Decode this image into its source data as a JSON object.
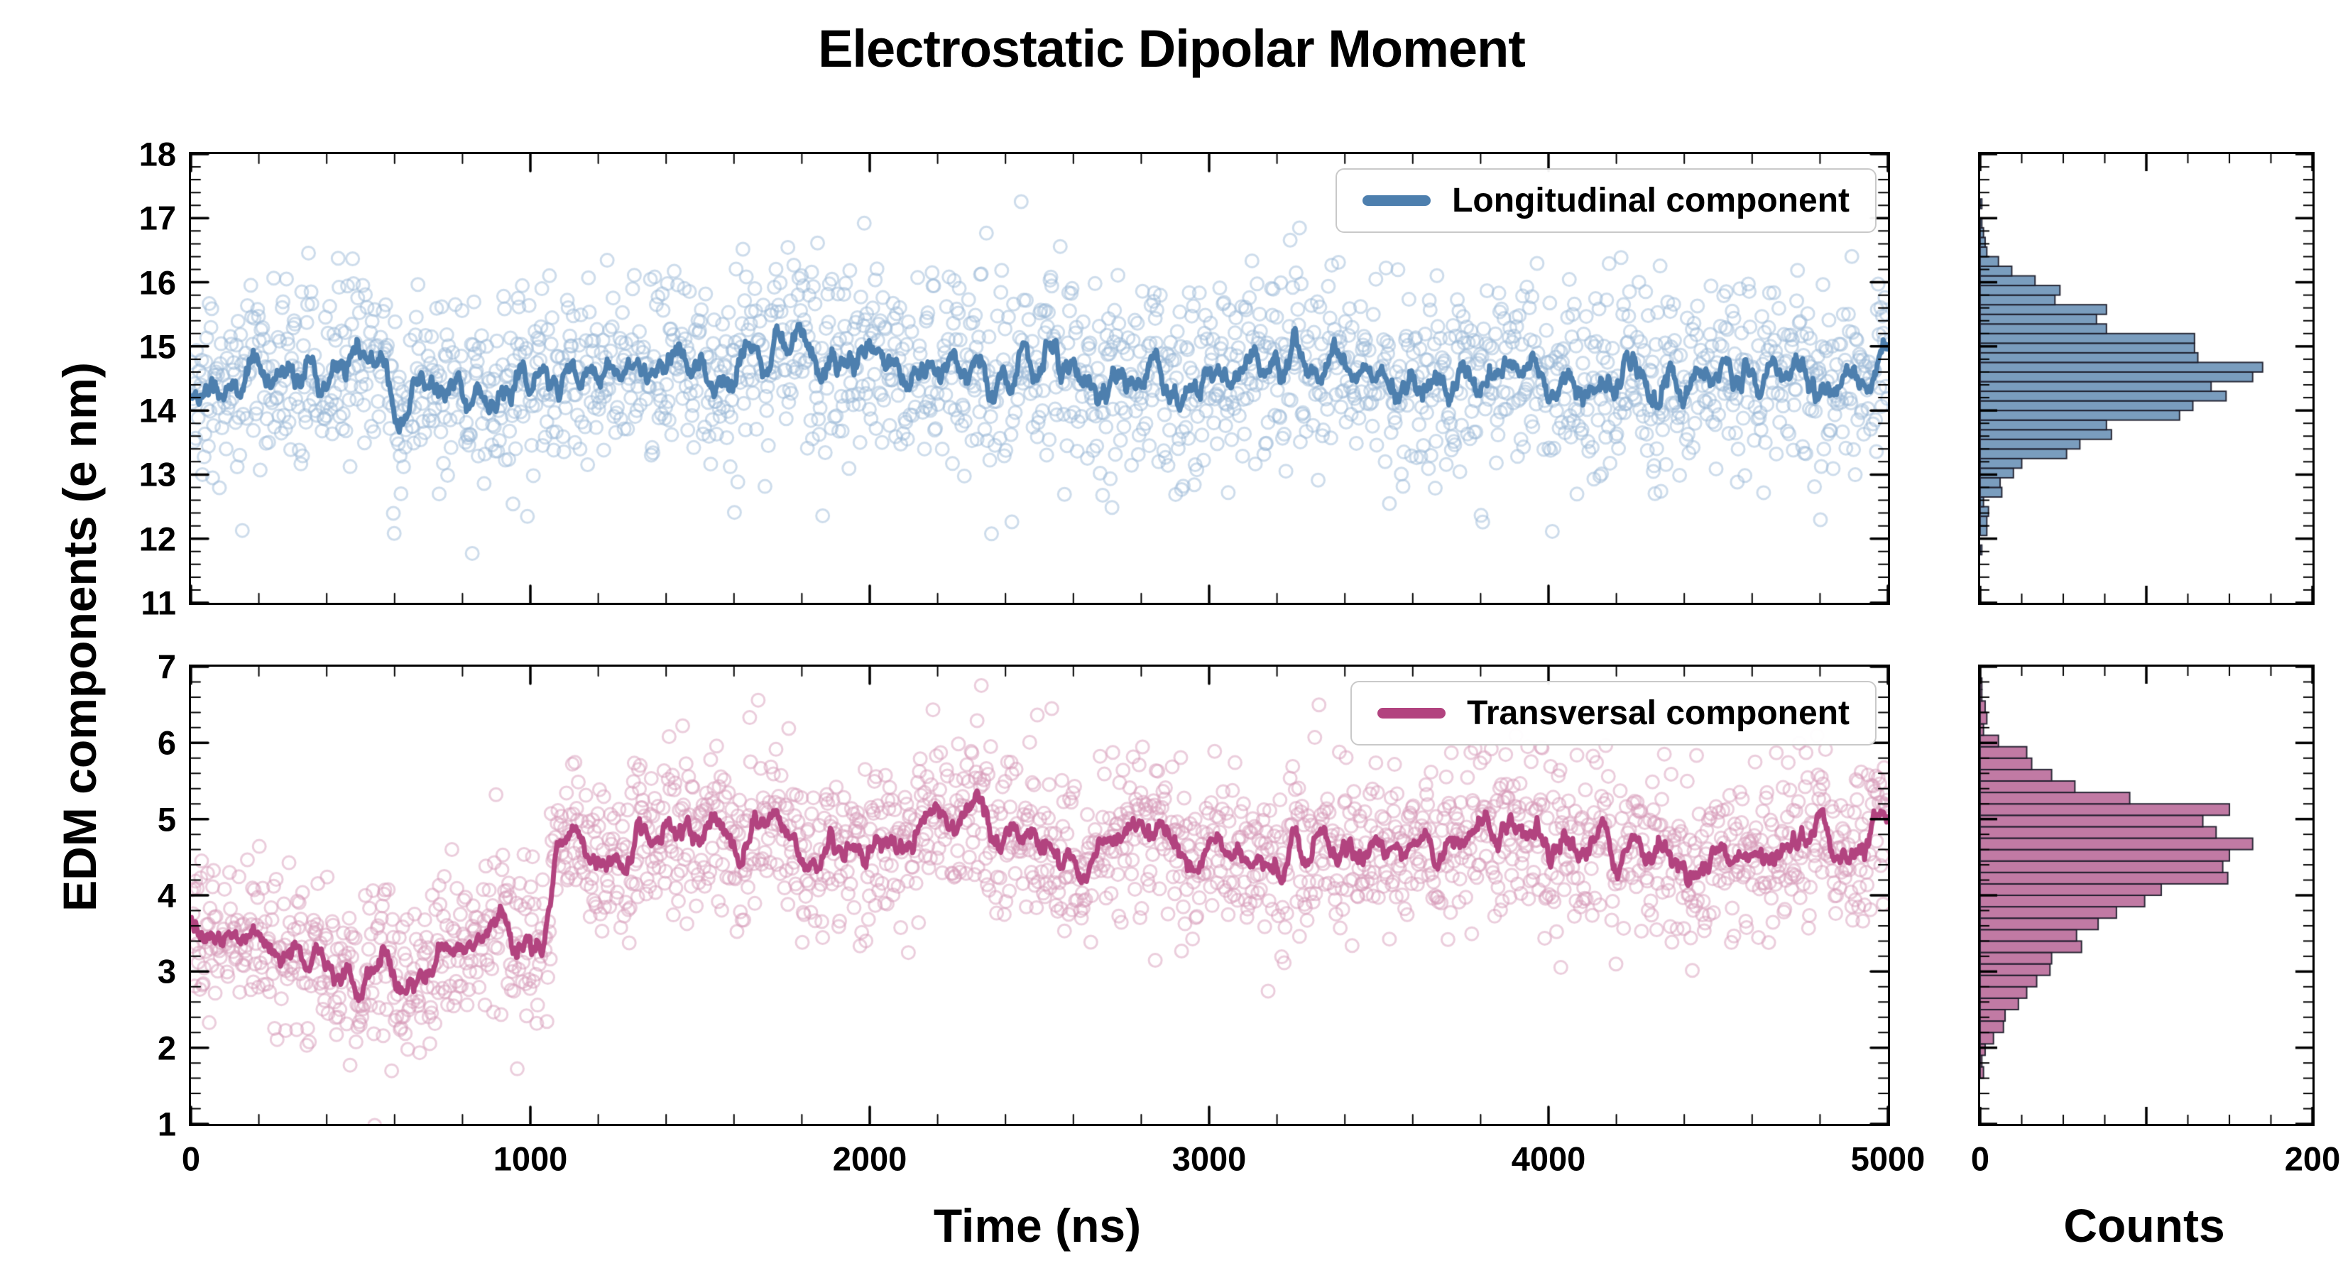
{
  "title": "Electrostatic Dipolar Moment",
  "axis": {
    "ylabel": "EDM components (e nm)",
    "xlabel": "Time (ns)",
    "counts_label": "Counts"
  },
  "ticks": {
    "x_minor_step": 200,
    "y_minor_step": 0.2
  },
  "chart_data": [
    {
      "id": "longitudinal",
      "type": "scatter",
      "legend": "Longitudinal component",
      "marker": "open-circle",
      "x_range": [
        0,
        5000
      ],
      "xticks": [
        0,
        1000,
        2000,
        3000,
        4000,
        5000
      ],
      "xtick_labels_visible": false,
      "ylim": [
        11,
        18
      ],
      "yticks": [
        11,
        12,
        13,
        14,
        15,
        16,
        17,
        18
      ],
      "n_points": 2000,
      "mean_levels": [
        {
          "x_start": 0,
          "x_end": 5000,
          "mean": 14.55
        }
      ],
      "noise_sd": 0.75,
      "wander_sd": 0.2,
      "moving_avg_window": 15,
      "seed": 42,
      "colors": {
        "line": "#4d7fae",
        "scatter": "#9bbad8",
        "hist_fill": "#6f95b8",
        "hist_edge": "#1c1c2a"
      },
      "histogram": {
        "orientation": "horizontal",
        "bin_width": 0.15,
        "xlim": [
          0,
          200
        ],
        "xticks": [
          0,
          200
        ],
        "xticks_major": [
          0,
          100,
          200
        ],
        "xtick_minor_step": 25,
        "peak_counts": 160,
        "peak_at": 14.6
      }
    },
    {
      "id": "transversal",
      "type": "scatter",
      "legend": "Transversal component",
      "marker": "open-circle",
      "x_range": [
        0,
        5000
      ],
      "xticks": [
        0,
        1000,
        2000,
        3000,
        4000,
        5000
      ],
      "xtick_labels_visible": true,
      "ylim": [
        1,
        7
      ],
      "yticks": [
        1,
        2,
        3,
        4,
        5,
        6,
        7
      ],
      "n_points": 2000,
      "mean_levels": [
        {
          "x_start": 0,
          "x_end": 1060,
          "mean": 3.35
        },
        {
          "x_start": 1060,
          "x_end": 5000,
          "mean": 4.72
        }
      ],
      "noise_sd": 0.55,
      "wander_sd": 0.16,
      "moving_avg_window": 15,
      "seed": 7,
      "colors": {
        "line": "#b2437f",
        "scatter": "#d79cba",
        "hist_fill": "#bc6f9c",
        "hist_edge": "#1c1c2a"
      },
      "histogram": {
        "orientation": "horizontal",
        "bin_width": 0.15,
        "xlim": [
          0,
          200
        ],
        "xticks": [
          0,
          200
        ],
        "xticks_major": [
          0,
          100,
          200
        ],
        "xtick_minor_step": 25,
        "peak_counts": 165,
        "peak_at": 4.7
      }
    }
  ]
}
